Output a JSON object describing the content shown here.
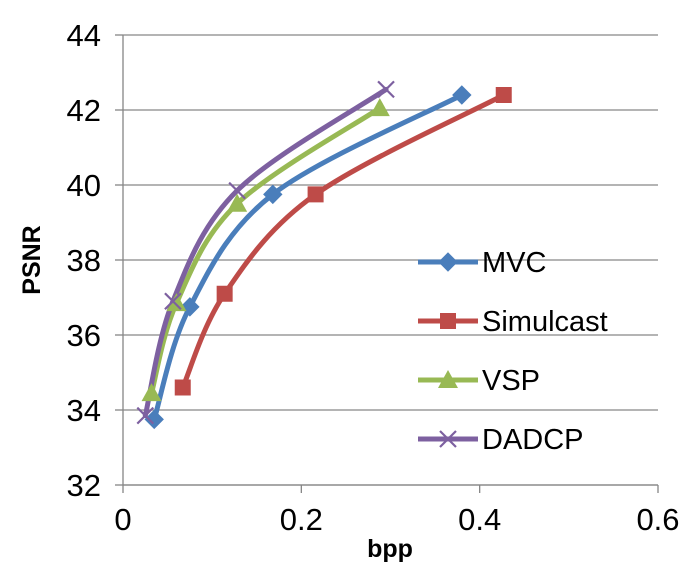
{
  "chart_data": {
    "type": "line",
    "title": "",
    "xlabel": "bpp",
    "ylabel": "PSNR",
    "xlim": [
      0,
      0.6
    ],
    "ylim": [
      32,
      44
    ],
    "xticks": [
      0,
      0.2,
      0.4,
      0.6
    ],
    "xtick_labels": [
      "0",
      "0.2",
      "0.4",
      "0.6"
    ],
    "yticks": [
      32,
      34,
      36,
      38,
      40,
      42,
      44
    ],
    "ytick_labels": [
      "32",
      "34",
      "36",
      "38",
      "40",
      "42",
      "44"
    ],
    "grid": "horizontal",
    "legend_position": "right",
    "series": [
      {
        "name": "MVC",
        "marker": "diamond",
        "color": "#4A7EBB",
        "x": [
          0.035,
          0.075,
          0.168,
          0.38
        ],
        "y": [
          33.75,
          36.75,
          39.75,
          42.4
        ]
      },
      {
        "name": "Simulcast",
        "marker": "square",
        "color": "#BE4B48",
        "x": [
          0.067,
          0.114,
          0.216,
          0.427
        ],
        "y": [
          34.6,
          37.1,
          39.75,
          42.4
        ]
      },
      {
        "name": "VSP",
        "marker": "triangle",
        "color": "#98B954",
        "x": [
          0.032,
          0.06,
          0.128,
          0.288
        ],
        "y": [
          34.45,
          36.85,
          39.5,
          42.05
        ]
      },
      {
        "name": "DADCP",
        "marker": "x",
        "color": "#7D60A0",
        "x": [
          0.025,
          0.056,
          0.128,
          0.295
        ],
        "y": [
          33.85,
          36.9,
          39.85,
          42.55
        ]
      }
    ]
  }
}
